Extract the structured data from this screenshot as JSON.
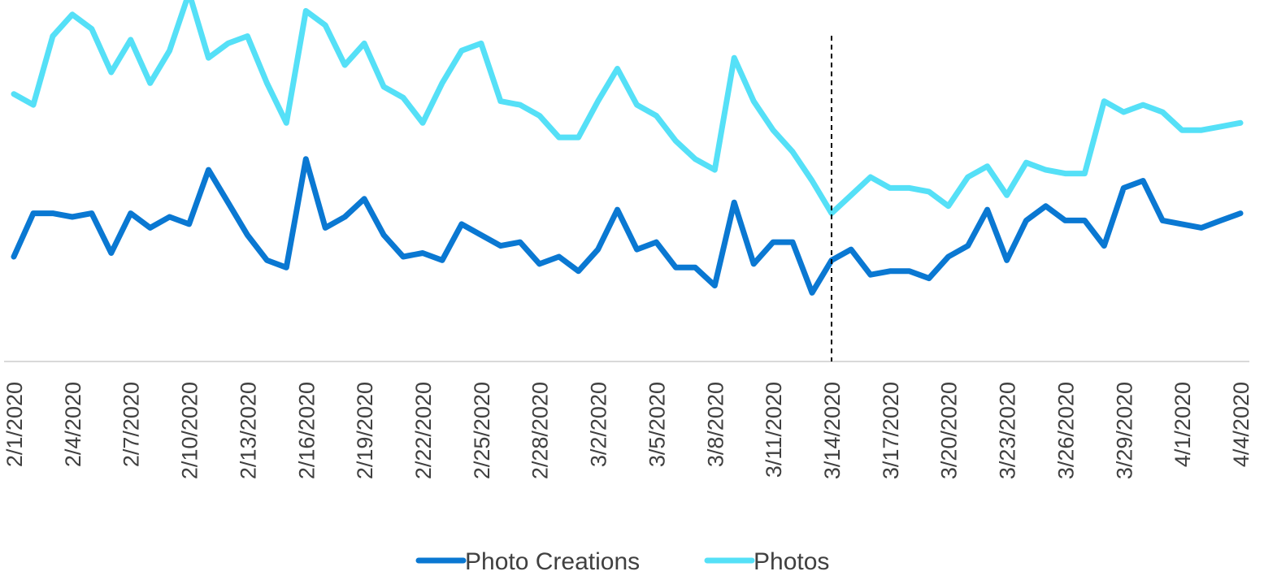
{
  "chart_data": {
    "type": "line",
    "title": "",
    "xlabel": "",
    "ylabel": "",
    "x": [
      "2/1/2020",
      "2/2/2020",
      "2/3/2020",
      "2/4/2020",
      "2/5/2020",
      "2/6/2020",
      "2/7/2020",
      "2/8/2020",
      "2/9/2020",
      "2/10/2020",
      "2/11/2020",
      "2/12/2020",
      "2/13/2020",
      "2/14/2020",
      "2/15/2020",
      "2/16/2020",
      "2/17/2020",
      "2/18/2020",
      "2/19/2020",
      "2/20/2020",
      "2/21/2020",
      "2/22/2020",
      "2/23/2020",
      "2/24/2020",
      "2/25/2020",
      "2/26/2020",
      "2/27/2020",
      "2/28/2020",
      "2/29/2020",
      "3/1/2020",
      "3/2/2020",
      "3/3/2020",
      "3/4/2020",
      "3/5/2020",
      "3/6/2020",
      "3/7/2020",
      "3/8/2020",
      "3/9/2020",
      "3/10/2020",
      "3/11/2020",
      "3/12/2020",
      "3/13/2020",
      "3/14/2020",
      "3/15/2020",
      "3/16/2020",
      "3/17/2020",
      "3/18/2020",
      "3/19/2020",
      "3/20/2020",
      "3/21/2020",
      "3/22/2020",
      "3/23/2020",
      "3/24/2020",
      "3/25/2020",
      "3/26/2020",
      "3/27/2020",
      "3/28/2020",
      "3/29/2020",
      "3/30/2020",
      "3/31/2020",
      "4/1/2020",
      "4/2/2020",
      "4/3/2020",
      "4/4/2020"
    ],
    "tick_labels": [
      "2/1/2020",
      "2/4/2020",
      "2/7/2020",
      "2/10/2020",
      "2/13/2020",
      "2/16/2020",
      "2/19/2020",
      "2/22/2020",
      "2/25/2020",
      "2/28/2020",
      "3/2/2020",
      "3/5/2020",
      "3/8/2020",
      "3/11/2020",
      "3/14/2020",
      "3/17/2020",
      "3/20/2020",
      "3/23/2020",
      "3/26/2020",
      "3/29/2020",
      "4/1/2020",
      "4/4/2020"
    ],
    "ylim": [
      0,
      100
    ],
    "y_axis_shown": false,
    "grid": false,
    "legend_position": "bottom",
    "annotations": [
      {
        "type": "vertical-dashed-line",
        "x": "3/14/2020"
      }
    ],
    "series": [
      {
        "name": "Photo Creations",
        "color": "#0A78D2",
        "values": [
          29,
          41,
          41,
          40,
          41,
          30,
          41,
          37,
          40,
          38,
          53,
          44,
          35,
          28,
          26,
          56,
          37,
          40,
          45,
          35,
          29,
          30,
          28,
          38,
          35,
          32,
          33,
          27,
          29,
          25,
          31,
          42,
          31,
          33,
          26,
          26,
          21,
          44,
          27,
          33,
          33,
          19,
          28,
          31,
          24,
          25,
          25,
          23,
          29,
          32,
          42,
          28,
          39,
          43,
          39,
          39,
          32,
          48,
          50,
          39,
          38,
          37,
          39,
          41
        ]
      },
      {
        "name": "Photos",
        "color": "#55E0F7",
        "values": [
          74,
          71,
          90,
          96,
          92,
          80,
          89,
          77,
          86,
          102,
          84,
          88,
          90,
          77,
          66,
          97,
          93,
          82,
          88,
          76,
          73,
          66,
          77,
          86,
          88,
          72,
          71,
          68,
          62,
          62,
          72,
          81,
          71,
          68,
          61,
          56,
          53,
          84,
          72,
          64,
          58,
          50,
          41,
          46,
          51,
          48,
          48,
          47,
          43,
          51,
          54,
          46,
          55,
          53,
          52,
          52,
          72,
          69,
          71,
          69,
          64,
          64,
          65,
          66
        ]
      }
    ]
  }
}
